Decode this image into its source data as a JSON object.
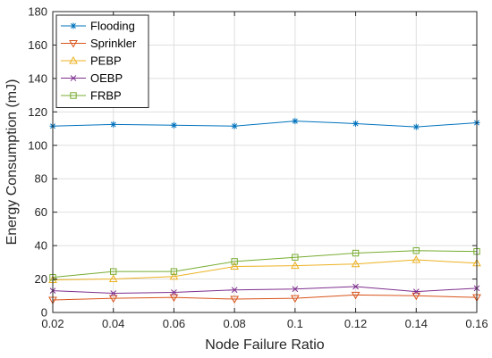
{
  "chart_data": {
    "type": "line",
    "title": "",
    "xlabel": "Node Failure Ratio",
    "ylabel": "Energy Consumption (mJ)",
    "xlim": [
      0.02,
      0.16
    ],
    "ylim": [
      0,
      180
    ],
    "x": [
      0.02,
      0.04,
      0.06,
      0.08,
      0.1,
      0.12,
      0.14,
      0.16
    ],
    "x_tick_labels": [
      "0.02",
      "0.04",
      "0.06",
      "0.08",
      "0.1",
      "0.12",
      "0.14",
      "0.16"
    ],
    "y_ticks": [
      0,
      20,
      40,
      60,
      80,
      100,
      120,
      140,
      160,
      180
    ],
    "grid": true,
    "legend_position": "top-left",
    "series": [
      {
        "name": "Flooding",
        "color": "#0072BD",
        "marker": "asterisk",
        "values": [
          111.5,
          112.5,
          112,
          111.5,
          114.5,
          113,
          111,
          113.5
        ]
      },
      {
        "name": "Sprinkler",
        "color": "#D95319",
        "marker": "triangle-down",
        "values": [
          7.5,
          8.5,
          9,
          8,
          8.5,
          10.5,
          10,
          9
        ]
      },
      {
        "name": "PEBP",
        "color": "#EDB120",
        "marker": "triangle-up",
        "values": [
          19.5,
          20,
          21.5,
          27.5,
          28,
          29,
          31.5,
          29.5
        ]
      },
      {
        "name": "OEBP",
        "color": "#7E2F8E",
        "marker": "x",
        "values": [
          13,
          11.5,
          12,
          13.5,
          14,
          15.5,
          12.5,
          14.5
        ]
      },
      {
        "name": "FRBP",
        "color": "#77AC30",
        "marker": "square",
        "values": [
          21,
          24.5,
          24.5,
          30.5,
          33,
          35.5,
          37,
          36.5
        ]
      }
    ]
  }
}
